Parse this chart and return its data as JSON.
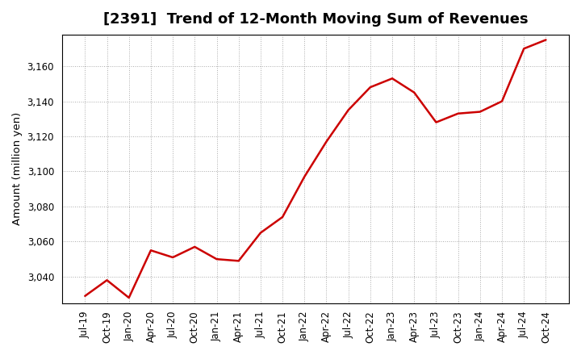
{
  "title": "[2391]  Trend of 12-Month Moving Sum of Revenues",
  "ylabel": "Amount (million yen)",
  "line_color": "#cc0000",
  "background_color": "#ffffff",
  "plot_bg_color": "#ffffff",
  "grid_color": "#aaaaaa",
  "x_labels": [
    "Jul-19",
    "Oct-19",
    "Jan-20",
    "Apr-20",
    "Jul-20",
    "Oct-20",
    "Jan-21",
    "Apr-21",
    "Jul-21",
    "Oct-21",
    "Jan-22",
    "Apr-22",
    "Jul-22",
    "Oct-22",
    "Jan-23",
    "Apr-23",
    "Jul-23",
    "Oct-23",
    "Jan-24",
    "Apr-24",
    "Jul-24",
    "Oct-24"
  ],
  "values": [
    3029,
    3038,
    3028,
    3055,
    3051,
    3057,
    3050,
    3049,
    3065,
    3074,
    3097,
    3117,
    3135,
    3148,
    3153,
    3145,
    3128,
    3133,
    3134,
    3140,
    3170,
    3175
  ],
  "ylim": [
    3025,
    3178
  ],
  "yticks": [
    3040,
    3060,
    3080,
    3100,
    3120,
    3140,
    3160
  ],
  "title_fontsize": 13,
  "axis_fontsize": 9.5,
  "tick_fontsize": 8.5
}
